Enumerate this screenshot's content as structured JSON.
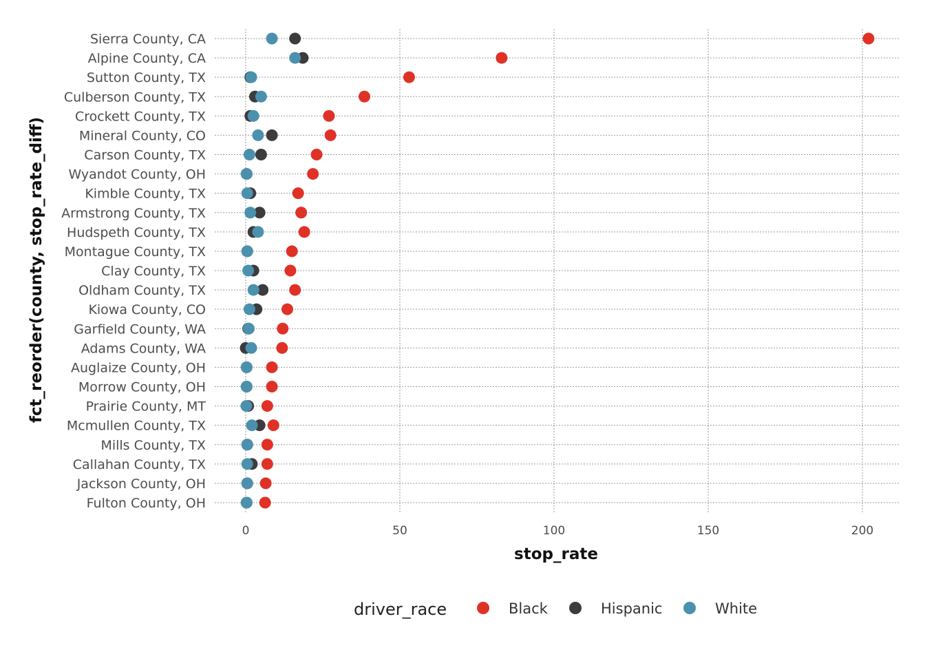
{
  "chart_data": {
    "type": "scatter",
    "title": "",
    "xlabel": "stop_rate",
    "ylabel": "fct_reorder(county, stop_rate_diff)",
    "xlim": [
      -10,
      212
    ],
    "xticks": [
      0,
      50,
      100,
      150,
      200
    ],
    "grid": true,
    "legend_position": "bottom",
    "legend_title": "driver_race",
    "categories": [
      "Sierra County, CA",
      "Alpine County, CA",
      "Sutton County, TX",
      "Culberson County, TX",
      "Crockett County, TX",
      "Mineral County, CO",
      "Carson County, TX",
      "Wyandot County, OH",
      "Kimble County, TX",
      "Armstrong County, TX",
      "Hudspeth County, TX",
      "Montague County, TX",
      "Clay County, TX",
      "Oldham County, TX",
      "Kiowa County, CO",
      "Garfield County, WA",
      "Adams County, WA",
      "Auglaize County, OH",
      "Morrow County, OH",
      "Prairie County, MT",
      "Mcmullen County, TX",
      "Mills County, TX",
      "Callahan County, TX",
      "Jackson County, OH",
      "Fulton County, OH"
    ],
    "series": [
      {
        "name": "Hispanic",
        "color": "#3d3b3e",
        "values": [
          16,
          18.5,
          1.5,
          3,
          1.5,
          8.5,
          5,
          0.3,
          1.5,
          4.5,
          2.5,
          0.5,
          2.5,
          5.5,
          3.5,
          0.8,
          0,
          0.3,
          0.3,
          0.8,
          4.5,
          0.5,
          2,
          0.5,
          0.3
        ]
      },
      {
        "name": "White",
        "color": "#4b91ad",
        "values": [
          8.5,
          16,
          1.8,
          5,
          2.5,
          4,
          1.2,
          0.3,
          0.5,
          1.5,
          4,
          0.5,
          0.8,
          2.5,
          1.2,
          1,
          1.8,
          0.3,
          0.3,
          0.2,
          2,
          0.5,
          0.5,
          0.5,
          0.3
        ]
      },
      {
        "name": "Black",
        "color": "#e03127",
        "values": [
          202,
          83,
          53,
          38.5,
          27,
          27.5,
          23,
          21.8,
          17,
          18,
          19,
          15,
          14.5,
          16,
          13.5,
          12,
          11.8,
          8.5,
          8.5,
          7,
          9,
          7,
          7,
          6.5,
          6.3
        ]
      }
    ],
    "legend_order": [
      "Black",
      "Hispanic",
      "White"
    ]
  }
}
